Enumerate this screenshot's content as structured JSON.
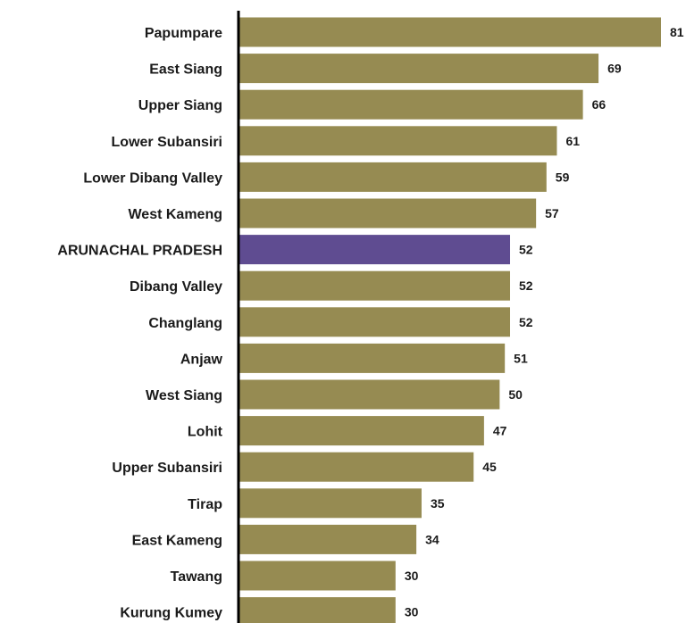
{
  "chart_data": {
    "type": "bar",
    "orientation": "horizontal",
    "categories": [
      "Papumpare",
      "East Siang",
      "Upper Siang",
      "Lower Subansiri",
      "Lower Dibang Valley",
      "West Kameng",
      "ARUNACHAL PRADESH",
      "Dibang Valley",
      "Changlang",
      "Anjaw",
      "West Siang",
      "Lohit",
      "Upper Subansiri",
      "Tirap",
      "East Kameng",
      "Tawang",
      "Kurung Kumey"
    ],
    "values": [
      81,
      69,
      66,
      61,
      59,
      57,
      52,
      52,
      52,
      51,
      50,
      47,
      45,
      35,
      34,
      30,
      30
    ],
    "highlight_category": "ARUNACHAL PRADESH",
    "title": "",
    "xlabel": "",
    "ylabel": "",
    "xlim": [
      0,
      86
    ],
    "grid": false,
    "legend": "none",
    "colors": {
      "bar": "#968b52",
      "highlight": "#5f4c91",
      "axis": "#000000",
      "text": "#1a1a1a"
    }
  }
}
